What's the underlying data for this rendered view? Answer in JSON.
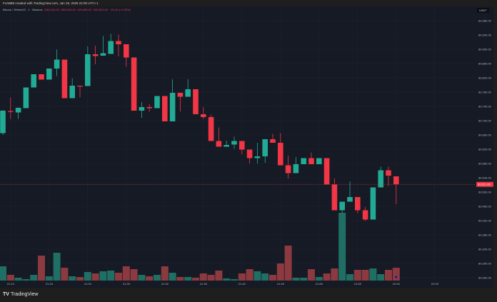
{
  "header": {
    "caption": "FLN888 created with TradingView.com, Jan 18, 2026 22:00 UTC+1"
  },
  "legend": {
    "symbol": "Bitcoin / TetherUS · 1 · Binance",
    "open": "O89,544.00",
    "high": "H89,544.00",
    "low": "L89,466.92",
    "close": "C89,521.60",
    "change": "−22.40 (−0.03%)"
  },
  "currency": "USDT",
  "footer": {
    "brand": "TradingView",
    "logo_mark": "TV"
  },
  "colors": {
    "up": "#22ab94",
    "down": "#f23645",
    "up_volume": "#1f6f65",
    "down_volume": "#8c3a40",
    "background": "#161a25"
  },
  "chart_data": {
    "type": "candlestick",
    "title": "",
    "ylim": [
      89250,
      89990
    ],
    "y_ticks": [
      "89,980.00",
      "89,940.00",
      "89,900.00",
      "89,860.00",
      "89,820.00",
      "89,780.00",
      "89,740.00",
      "89,700.00",
      "89,660.00",
      "89,620.00",
      "89,580.00",
      "89,540.00",
      "89,500.00",
      "89,460.00",
      "89,420.00",
      "89,380.00",
      "89,340.00",
      "89,300.00",
      "89,260.00"
    ],
    "x_ticks": [
      "21:10",
      "21:15",
      "21:20",
      "21:25",
      "21:30",
      "21:35",
      "21:40",
      "21:45",
      "21:50",
      "21:55",
      "22:00",
      "22:05"
    ],
    "last_price": "89,521.60",
    "first_time": "21:09",
    "interval_minutes": 1,
    "candles": [
      [
        89665,
        89730,
        89660,
        89728
      ],
      [
        89727,
        89765,
        89705,
        89725
      ],
      [
        89723,
        89737,
        89705,
        89736
      ],
      [
        89735,
        89793,
        89735,
        89793
      ],
      [
        89793,
        89830,
        89793,
        89830
      ],
      [
        89830,
        89830,
        89815,
        89815
      ],
      [
        89815,
        89846,
        89815,
        89846
      ],
      [
        89846,
        89899,
        89825,
        89871
      ],
      [
        89871,
        89871,
        89763,
        89763
      ],
      [
        89763,
        89819,
        89763,
        89798
      ],
      [
        89798,
        89798,
        89765,
        89797
      ],
      [
        89797,
        89908,
        89797,
        89886
      ],
      [
        89886,
        89910,
        89858,
        89881
      ],
      [
        89882,
        89937,
        89882,
        89889
      ],
      [
        89887,
        89943,
        89887,
        89923
      ],
      [
        89923,
        89941,
        89880,
        89914
      ],
      [
        89914,
        89914,
        89851,
        89877
      ],
      [
        89877,
        89877,
        89728,
        89728
      ],
      [
        89728,
        89752,
        89708,
        89738
      ],
      [
        89738,
        89746,
        89725,
        89735
      ],
      [
        89735,
        89769,
        89735,
        89769
      ],
      [
        89769,
        89769,
        89698,
        89698
      ],
      [
        89698,
        89816,
        89698,
        89778
      ],
      [
        89778,
        89778,
        89726,
        89767
      ],
      [
        89767,
        89816,
        89767,
        89788
      ],
      [
        89788,
        89788,
        89718,
        89718
      ],
      [
        89718,
        89738,
        89705,
        89710
      ],
      [
        89710,
        89717,
        89643,
        89643
      ],
      [
        89643,
        89681,
        89627,
        89627
      ],
      [
        89627,
        89644,
        89627,
        89632
      ],
      [
        89633,
        89655,
        89621,
        89643
      ],
      [
        89643,
        89643,
        89606,
        89619
      ],
      [
        89619,
        89619,
        89580,
        89595
      ],
      [
        89595,
        89638,
        89580,
        89600
      ],
      [
        89600,
        89648,
        89582,
        89648
      ],
      [
        89648,
        89663,
        89638,
        89638
      ],
      [
        89638,
        89665,
        89575,
        89575
      ],
      [
        89575,
        89602,
        89538,
        89553
      ],
      [
        89553,
        89598,
        89553,
        89578
      ],
      [
        89578,
        89595,
        89578,
        89595
      ],
      [
        89595,
        89611,
        89578,
        89578
      ],
      [
        89578,
        89595,
        89578,
        89595
      ],
      [
        89595,
        89595,
        89521,
        89521
      ],
      [
        89521,
        89538,
        89449,
        89449
      ],
      [
        89449,
        89473,
        89441,
        89473
      ],
      [
        89473,
        89530,
        89473,
        89486
      ],
      [
        89486,
        89486,
        89441,
        89449
      ],
      [
        89449,
        89458,
        89419,
        89423
      ],
      [
        89423,
        89513,
        89423,
        89513
      ],
      [
        89513,
        89571,
        89513,
        89561
      ],
      [
        89561,
        89571,
        89517,
        89546
      ],
      [
        89544,
        89544,
        89466,
        89521.6
      ]
    ],
    "volume_relative": [
      20,
      8,
      4,
      2,
      8,
      35,
      6,
      39,
      18,
      6,
      5,
      12,
      10,
      13,
      14,
      11,
      20,
      16,
      8,
      6,
      8,
      20,
      11,
      5,
      5,
      4,
      10,
      8,
      14,
      3,
      2,
      10,
      16,
      13,
      10,
      8,
      24,
      49,
      4,
      4,
      16,
      5,
      10,
      17,
      95,
      9,
      15,
      15,
      17,
      9,
      15,
      18
    ]
  }
}
